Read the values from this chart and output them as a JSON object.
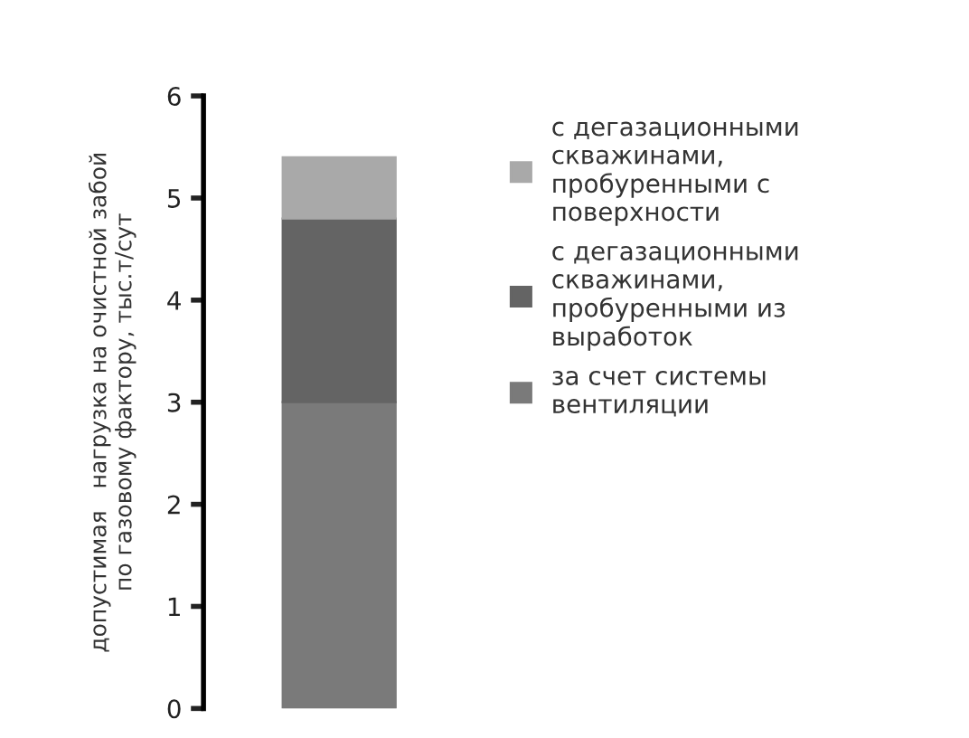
{
  "chart_data": {
    "type": "bar",
    "stacked": true,
    "ylabel": "допустимая   нагрузка на очистной забой\nпо газовому фактору, тыс.т/сут",
    "categories": [
      null
    ],
    "series": [
      {
        "name": "за счет системы\nвентиляции",
        "color": "#7a7a7a",
        "values": [
          3.0
        ]
      },
      {
        "name": "с дегазационными\nскважинами,\nпробуренными из\nвыработок",
        "color": "#646464",
        "values": [
          1.8
        ]
      },
      {
        "name": "с дегазационными\nскважинами,\nпробуренными с\nповерхности",
        "color": "#a9a9a9",
        "values": [
          0.6
        ]
      }
    ],
    "ylim": [
      0,
      6
    ],
    "yticks": [
      0,
      1,
      2,
      3,
      4,
      5,
      6
    ],
    "grid": false,
    "legend": "right"
  }
}
